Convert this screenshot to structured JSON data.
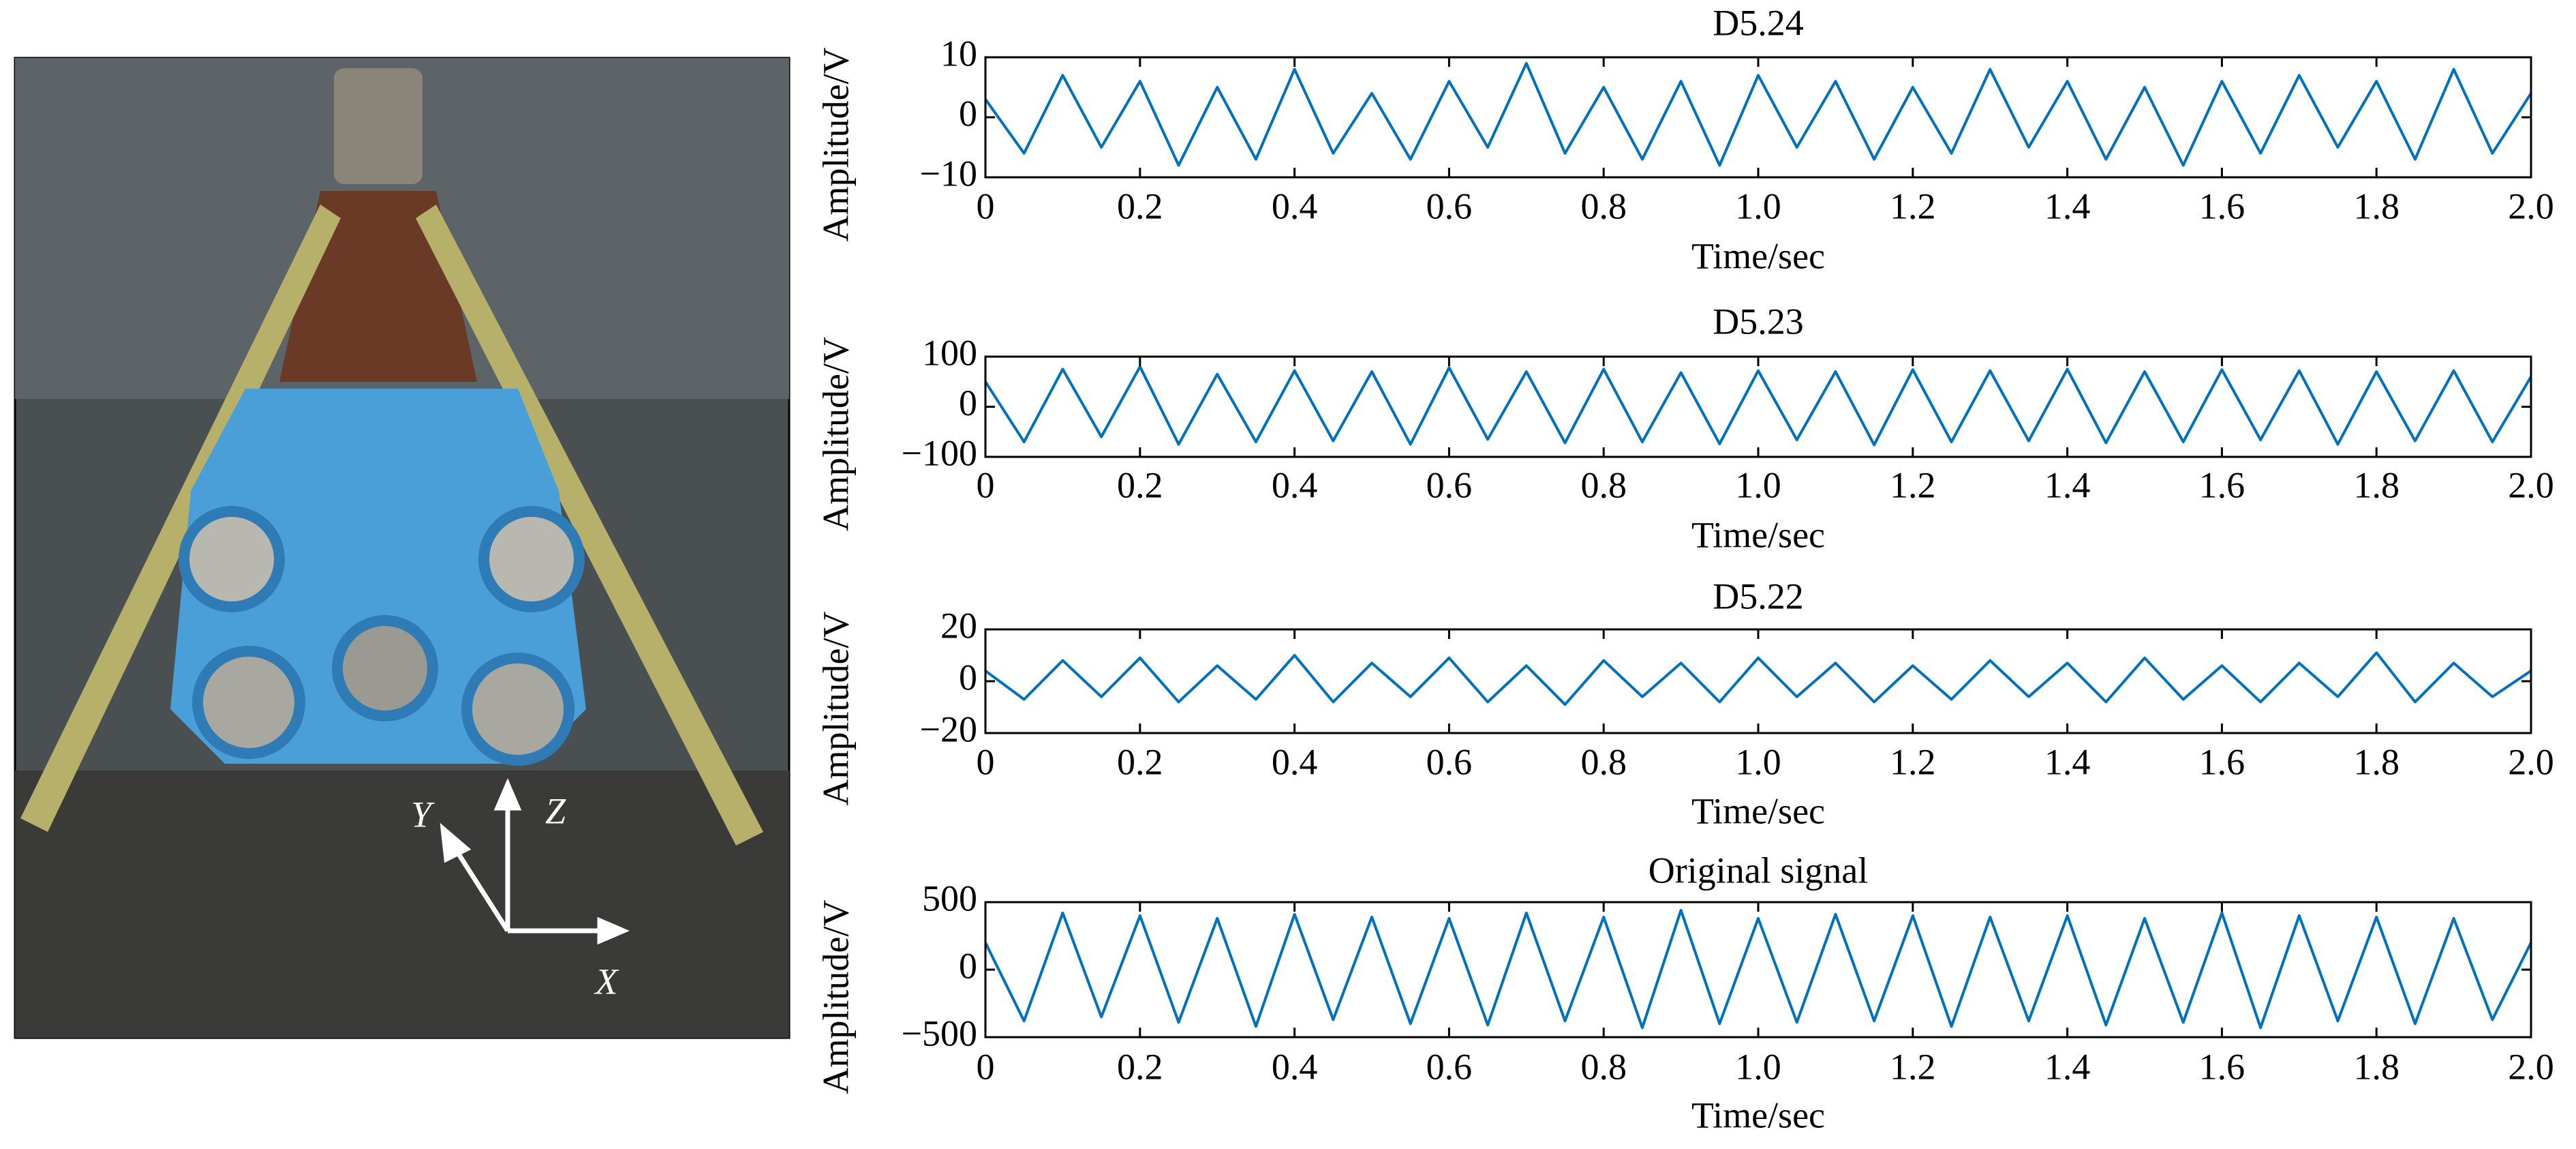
{
  "photo": {
    "axis_labels": {
      "x": "X",
      "y": "Y",
      "z": "Z"
    }
  },
  "chart_data": [
    {
      "type": "line",
      "title": "D5.24",
      "xlabel": "Time/sec",
      "ylabel": "Amplitude/V",
      "color": "#0072bd",
      "xlim": [
        0,
        2
      ],
      "xticks": [
        0,
        0.2,
        0.4,
        0.6,
        0.8,
        {
          "value": 1,
          "label": "1.0"
        },
        1.2,
        1.4,
        1.6,
        1.8,
        {
          "value": 2,
          "label": "2.0"
        }
      ],
      "ylim": [
        -10,
        10
      ],
      "yticks": [
        {
          "value": -10,
          "label": "−10"
        },
        0,
        10
      ],
      "x": [
        0,
        0.05,
        0.1,
        0.15,
        0.2,
        0.25,
        0.3,
        0.35,
        0.4,
        0.45,
        0.5,
        0.55,
        0.6,
        0.65,
        0.7,
        0.75,
        0.8,
        0.85,
        0.9,
        0.95,
        1,
        1.05,
        1.1,
        1.15,
        1.2,
        1.25,
        1.3,
        1.35,
        1.4,
        1.45,
        1.5,
        1.55,
        1.6,
        1.65,
        1.7,
        1.75,
        1.8,
        1.85,
        1.9,
        1.95,
        2
      ],
      "values": [
        3,
        -6,
        7,
        -5,
        6,
        -8,
        5,
        -7,
        8,
        -6,
        4,
        -7,
        6,
        -5,
        9,
        -6,
        5,
        -7,
        6,
        -8,
        7,
        -5,
        6,
        -7,
        5,
        -6,
        8,
        -5,
        6,
        -7,
        5,
        -8,
        6,
        -6,
        7,
        -5,
        6,
        -7,
        8,
        -6,
        4
      ]
    },
    {
      "type": "line",
      "title": "D5.23",
      "xlabel": "Time/sec",
      "ylabel": "Amplitude/V",
      "color": "#0072bd",
      "xlim": [
        0,
        2
      ],
      "xticks": [
        0,
        0.2,
        0.4,
        0.6,
        0.8,
        {
          "value": 1,
          "label": "1.0"
        },
        1.2,
        1.4,
        1.6,
        1.8,
        {
          "value": 2,
          "label": "2.0"
        }
      ],
      "ylim": [
        -100,
        100
      ],
      "yticks": [
        {
          "value": -100,
          "label": "−100"
        },
        0,
        100
      ],
      "x": [
        0,
        0.05,
        0.1,
        0.15,
        0.2,
        0.25,
        0.3,
        0.35,
        0.4,
        0.45,
        0.5,
        0.55,
        0.6,
        0.65,
        0.7,
        0.75,
        0.8,
        0.85,
        0.9,
        0.95,
        1,
        1.05,
        1.1,
        1.15,
        1.2,
        1.25,
        1.3,
        1.35,
        1.4,
        1.45,
        1.5,
        1.55,
        1.6,
        1.65,
        1.7,
        1.75,
        1.8,
        1.85,
        1.9,
        1.95,
        2
      ],
      "values": [
        50,
        -70,
        75,
        -60,
        80,
        -75,
        65,
        -70,
        72,
        -68,
        70,
        -75,
        78,
        -65,
        70,
        -72,
        75,
        -70,
        68,
        -74,
        72,
        -66,
        70,
        -76,
        74,
        -70,
        72,
        -68,
        75,
        -72,
        70,
        -70,
        74,
        -66,
        72,
        -75,
        70,
        -68,
        72,
        -70,
        60
      ]
    },
    {
      "type": "line",
      "title": "D5.22",
      "xlabel": "Time/sec",
      "ylabel": "Amplitude/V",
      "color": "#0072bd",
      "xlim": [
        0,
        2
      ],
      "xticks": [
        0,
        0.2,
        0.4,
        0.6,
        0.8,
        {
          "value": 1,
          "label": "1.0"
        },
        1.2,
        1.4,
        1.6,
        1.8,
        {
          "value": 2,
          "label": "2.0"
        }
      ],
      "ylim": [
        -20,
        20
      ],
      "yticks": [
        {
          "value": -20,
          "label": "−20"
        },
        0,
        20
      ],
      "x": [
        0,
        0.05,
        0.1,
        0.15,
        0.2,
        0.25,
        0.3,
        0.35,
        0.4,
        0.45,
        0.5,
        0.55,
        0.6,
        0.65,
        0.7,
        0.75,
        0.8,
        0.85,
        0.9,
        0.95,
        1,
        1.05,
        1.1,
        1.15,
        1.2,
        1.25,
        1.3,
        1.35,
        1.4,
        1.45,
        1.5,
        1.55,
        1.6,
        1.65,
        1.7,
        1.75,
        1.8,
        1.85,
        1.9,
        1.95,
        2
      ],
      "values": [
        4,
        -7,
        8,
        -6,
        9,
        -8,
        6,
        -7,
        10,
        -8,
        7,
        -6,
        9,
        -8,
        6,
        -9,
        8,
        -6,
        7,
        -8,
        9,
        -6,
        7,
        -8,
        6,
        -7,
        8,
        -6,
        7,
        -8,
        9,
        -7,
        6,
        -8,
        7,
        -6,
        11,
        -8,
        7,
        -6,
        4
      ]
    },
    {
      "type": "line",
      "title": "Original signal",
      "xlabel": "Time/sec",
      "ylabel": "Amplitude/V",
      "color": "#0072bd",
      "xlim": [
        0,
        2
      ],
      "xticks": [
        0,
        0.2,
        0.4,
        0.6,
        0.8,
        {
          "value": 1,
          "label": "1.0"
        },
        1.2,
        1.4,
        1.6,
        1.8,
        {
          "value": 2,
          "label": "2.0"
        }
      ],
      "ylim": [
        -500,
        500
      ],
      "yticks": [
        {
          "value": -500,
          "label": "−500"
        },
        0,
        500
      ],
      "x": [
        0,
        0.05,
        0.1,
        0.15,
        0.2,
        0.25,
        0.3,
        0.35,
        0.4,
        0.45,
        0.5,
        0.55,
        0.6,
        0.65,
        0.7,
        0.75,
        0.8,
        0.85,
        0.9,
        0.95,
        1,
        1.05,
        1.1,
        1.15,
        1.2,
        1.25,
        1.3,
        1.35,
        1.4,
        1.45,
        1.5,
        1.55,
        1.6,
        1.65,
        1.7,
        1.75,
        1.8,
        1.85,
        1.9,
        1.95,
        2
      ],
      "values": [
        200,
        -380,
        420,
        -350,
        400,
        -390,
        380,
        -420,
        410,
        -370,
        390,
        -400,
        380,
        -410,
        420,
        -380,
        390,
        -430,
        440,
        -400,
        380,
        -390,
        410,
        -380,
        400,
        -420,
        390,
        -380,
        400,
        -410,
        380,
        -390,
        420,
        -430,
        400,
        -380,
        390,
        -400,
        380,
        -370,
        200
      ]
    }
  ]
}
